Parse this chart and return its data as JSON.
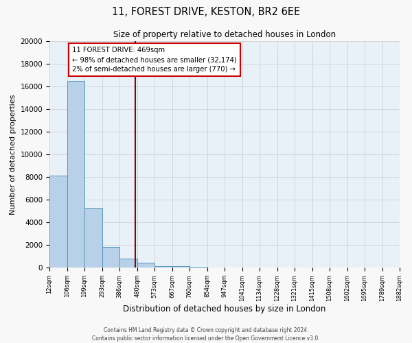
{
  "title": "11, FOREST DRIVE, KESTON, BR2 6EE",
  "subtitle": "Size of property relative to detached houses in London",
  "xlabel": "Distribution of detached houses by size in London",
  "ylabel": "Number of detached properties",
  "bin_labels": [
    "12sqm",
    "106sqm",
    "199sqm",
    "293sqm",
    "386sqm",
    "480sqm",
    "573sqm",
    "667sqm",
    "760sqm",
    "854sqm",
    "947sqm",
    "1041sqm",
    "1134sqm",
    "1228sqm",
    "1321sqm",
    "1415sqm",
    "1508sqm",
    "1602sqm",
    "1695sqm",
    "1789sqm",
    "1882sqm"
  ],
  "bin_edges": [
    12,
    106,
    199,
    293,
    386,
    480,
    573,
    667,
    760,
    854,
    947,
    1041,
    1134,
    1228,
    1321,
    1415,
    1508,
    1602,
    1695,
    1789,
    1882
  ],
  "bar_heights": [
    8100,
    16500,
    5300,
    1800,
    800,
    400,
    150,
    100,
    75,
    0,
    0,
    0,
    0,
    0,
    0,
    0,
    0,
    0,
    0,
    0
  ],
  "bar_color": "#b8d0e8",
  "bar_edge_color": "#5599bb",
  "vline_color": "#8b0000",
  "vline_x": 469,
  "annotation_title": "11 FOREST DRIVE: 469sqm",
  "annotation_line1": "← 98% of detached houses are smaller (32,174)",
  "annotation_line2": "2% of semi-detached houses are larger (770) →",
  "annotation_box_color": "#ffffff",
  "annotation_box_edge": "#cc0000",
  "ylim": [
    0,
    20000
  ],
  "yticks": [
    0,
    2000,
    4000,
    6000,
    8000,
    10000,
    12000,
    14000,
    16000,
    18000,
    20000
  ],
  "grid_color": "#cccccc",
  "bg_color": "#e8f0f8",
  "footer1": "Contains HM Land Registry data © Crown copyright and database right 2024.",
  "footer2": "Contains public sector information licensed under the Open Government Licence v3.0."
}
